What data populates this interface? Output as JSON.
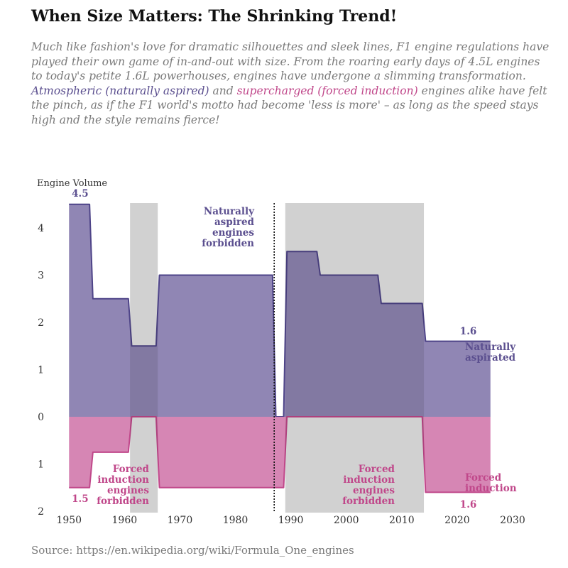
{
  "title": "When Size Matters: The Shrinking Trend!",
  "subtitle": {
    "part1": "Much like fashion's love for dramatic silhouettes and sleek lines, F1 engine regulations have played their own game of in-and-out with size. From the roaring early days of 4.5L engines to today's petite 1.6L powerhouses, engines have undergone a slimming transformation. ",
    "na_term": "Atmospheric",
    "na_paren": "naturally aspired",
    "part2": "and ",
    "fi_term": "supercharged",
    "fi_paren": "forced induction",
    "part3": " engines alike have felt the pinch, as if the F1 world's motto had become 'less is more' – as long as the speed stays high and the style remains fierce!"
  },
  "source": "Source: https://en.wikipedia.org/wiki/Formula_One_engines",
  "colors": {
    "naturally_aspirated_fill": "#8a80b0",
    "naturally_aspirated_line": "#4e4488",
    "forced_induction_fill": "#d480b0",
    "forced_induction_line": "#c0478a",
    "forbidden_band": "#e6e6e6",
    "text_na": "#5b4f8f",
    "text_fi": "#c0478a"
  },
  "chart_data": {
    "type": "area",
    "ylabel": "Engine Volume",
    "xlim": [
      1946,
      2030
    ],
    "ylim": [
      -2,
      4.5
    ],
    "x_ticks": [
      "1950",
      "1960",
      "1970",
      "1980",
      "1990",
      "2000",
      "2010",
      "2020",
      "2030"
    ],
    "y_ticks": [
      {
        "value": 4,
        "label": "4"
      },
      {
        "value": 3,
        "label": "3"
      },
      {
        "value": 2,
        "label": "2"
      },
      {
        "value": 1,
        "label": "1"
      },
      {
        "value": 0,
        "label": "0"
      },
      {
        "value": -1,
        "label": "1"
      },
      {
        "value": -2,
        "label": "2"
      }
    ],
    "series": [
      {
        "name": "Naturally aspirated",
        "direction": "up",
        "steps": [
          {
            "start": 1950,
            "end": 1954,
            "value": 4.5
          },
          {
            "start": 1954,
            "end": 1961,
            "value": 2.5
          },
          {
            "start": 1961,
            "end": 1966,
            "value": 1.5
          },
          {
            "start": 1966,
            "end": 1987,
            "value": 3.0
          },
          {
            "start": 1987,
            "end": 1989,
            "value": 0
          },
          {
            "start": 1989,
            "end": 1995,
            "value": 3.5
          },
          {
            "start": 1995,
            "end": 2006,
            "value": 3.0
          },
          {
            "start": 2006,
            "end": 2014,
            "value": 2.4
          },
          {
            "start": 2014,
            "end": 2026,
            "value": 1.6
          }
        ]
      },
      {
        "name": "Forced induction",
        "direction": "down",
        "steps": [
          {
            "start": 1950,
            "end": 1954,
            "value": 1.5
          },
          {
            "start": 1954,
            "end": 1961,
            "value": 0.75
          },
          {
            "start": 1961,
            "end": 1966,
            "value": 0
          },
          {
            "start": 1966,
            "end": 1989,
            "value": 1.5
          },
          {
            "start": 1989,
            "end": 2014,
            "value": 0
          },
          {
            "start": 2014,
            "end": 2026,
            "value": 1.6
          }
        ]
      }
    ],
    "forbidden_bands": [
      {
        "start": 1961,
        "end": 1966
      },
      {
        "start": 1989,
        "end": 2014
      }
    ],
    "event_line": 1987,
    "annotations": {
      "na_forbidden": [
        "Naturally",
        "aspired",
        "engines",
        "forbidden"
      ],
      "fi_forbidden": [
        "Forced",
        "induction",
        "engines",
        "forbidden"
      ],
      "na_end": [
        "Naturally",
        "aspirated"
      ],
      "fi_end": [
        "Forced",
        "induction"
      ],
      "na_start_value": "4.5",
      "fi_start_value": "1.5",
      "na_end_value": "1.6",
      "fi_end_value": "1.6"
    }
  }
}
